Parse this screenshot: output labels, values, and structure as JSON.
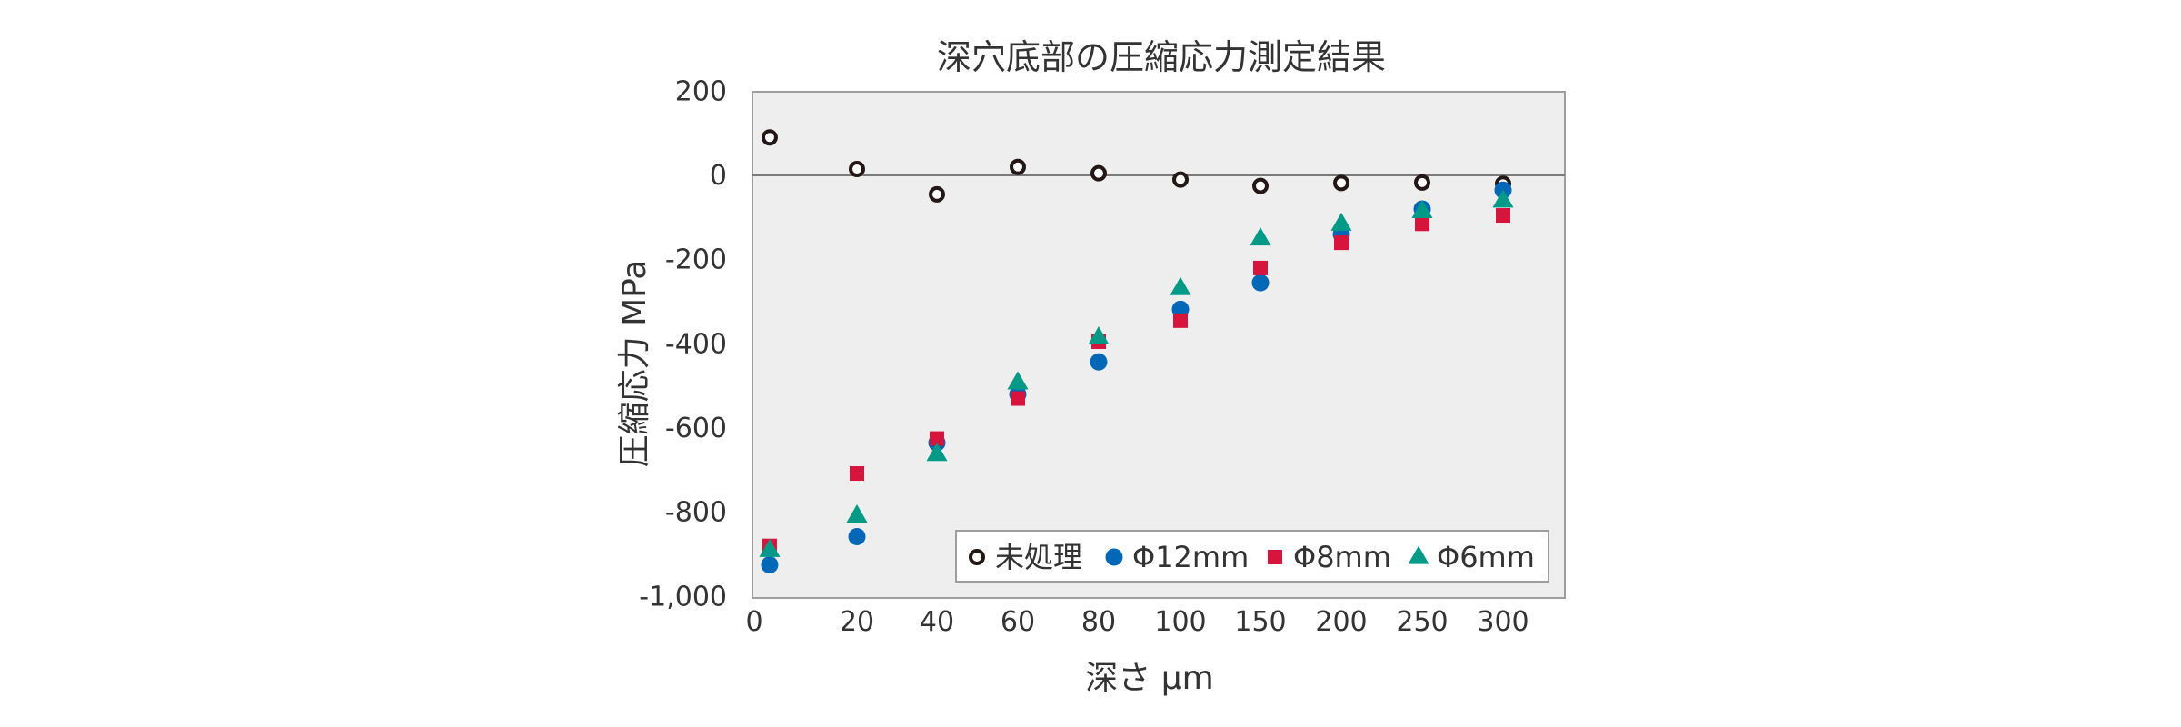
{
  "chart_data": {
    "type": "scatter",
    "title": "深穴底部の圧縮応力測定結果",
    "xlabel": "深さ μm",
    "ylabel": "圧縮応力 MPa",
    "x_scale": "categorical (non-linear depth axis)",
    "x_tick_labels": [
      "0",
      "20",
      "40",
      "60",
      "80",
      "100",
      "150",
      "200",
      "250",
      "300"
    ],
    "y_ticks": [
      200,
      0,
      -200,
      -400,
      -600,
      -800,
      -1000
    ],
    "y_tick_labels": [
      "200",
      "0",
      "-200",
      "-400",
      "-600",
      "-800",
      "-1,000"
    ],
    "ylim": [
      -1000,
      200
    ],
    "zero_line": true,
    "grid": false,
    "plot_background": "#eeeeee",
    "legend_position": "bottom-right",
    "series": [
      {
        "name": "未処理",
        "marker": "open-circle",
        "color": "#231815",
        "points": [
          {
            "x": 3,
            "y": 90
          },
          {
            "x": 20,
            "y": 15
          },
          {
            "x": 40,
            "y": -45
          },
          {
            "x": 60,
            "y": 20
          },
          {
            "x": 80,
            "y": 5
          },
          {
            "x": 100,
            "y": -10
          },
          {
            "x": 150,
            "y": -25
          },
          {
            "x": 200,
            "y": -18
          },
          {
            "x": 250,
            "y": -17
          },
          {
            "x": 300,
            "y": -20
          }
        ]
      },
      {
        "name": "Φ12mm",
        "marker": "filled-circle",
        "color": "#0068b7",
        "points": [
          {
            "x": 3,
            "y": -925
          },
          {
            "x": 20,
            "y": -858
          },
          {
            "x": 40,
            "y": -635
          },
          {
            "x": 60,
            "y": -520
          },
          {
            "x": 80,
            "y": -443
          },
          {
            "x": 100,
            "y": -318
          },
          {
            "x": 150,
            "y": -255
          },
          {
            "x": 200,
            "y": -140
          },
          {
            "x": 250,
            "y": -80
          },
          {
            "x": 300,
            "y": -35
          }
        ]
      },
      {
        "name": "Φ8mm",
        "marker": "square",
        "color": "#d7143c",
        "points": [
          {
            "x": 3,
            "y": -880
          },
          {
            "x": 20,
            "y": -708
          },
          {
            "x": 40,
            "y": -625
          },
          {
            "x": 60,
            "y": -530
          },
          {
            "x": 80,
            "y": -395
          },
          {
            "x": 100,
            "y": -345
          },
          {
            "x": 150,
            "y": -220
          },
          {
            "x": 200,
            "y": -160
          },
          {
            "x": 250,
            "y": -115
          },
          {
            "x": 300,
            "y": -95
          }
        ]
      },
      {
        "name": "Φ6mm",
        "marker": "triangle",
        "color": "#009a87",
        "points": [
          {
            "x": 3,
            "y": -890
          },
          {
            "x": 20,
            "y": -808
          },
          {
            "x": 40,
            "y": -662
          },
          {
            "x": 60,
            "y": -492
          },
          {
            "x": 80,
            "y": -385
          },
          {
            "x": 100,
            "y": -268
          },
          {
            "x": 150,
            "y": -150
          },
          {
            "x": 200,
            "y": -115
          },
          {
            "x": 250,
            "y": -85
          },
          {
            "x": 300,
            "y": -60
          }
        ]
      }
    ]
  }
}
